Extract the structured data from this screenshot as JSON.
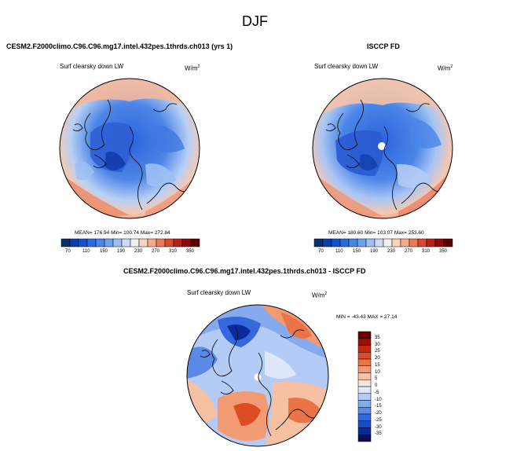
{
  "page": {
    "season": "DJF"
  },
  "panels": {
    "model": {
      "title": "CESM2.F2000climo.C96.C96.mg17.intel.432pes.1thrds.ch013 (yrs 1)",
      "variable": "Surf clearsky down LW",
      "units_base": "W/m",
      "units_exp": "2",
      "stats": "MEAN= 176.94  Min= 100.74  Max= 272.84"
    },
    "obs": {
      "title": "ISCCP FD",
      "variable": "Surf clearsky down LW",
      "units_base": "W/m",
      "units_exp": "2",
      "stats": "MEAN= 180.60  Min= 103.07  Max= 253.60"
    },
    "diff": {
      "title": "CESM2.F2000climo.C96.C96.mg17.intel.432pes.1thrds.ch013 - ISCCP FD",
      "variable": "Surf clearsky down LW",
      "units_base": "W/m",
      "units_exp": "2",
      "stats": "MIN = -43.43  MAX =  27.14"
    }
  },
  "chart_data": [
    {
      "type": "heatmap",
      "projection": "polar-stereographic-north",
      "title": "CESM2.F2000climo.C96.C96.mg17.intel.432pes.1thrds.ch013 (yrs 1)",
      "variable": "Surf clearsky down LW",
      "mean": 176.94,
      "min": 100.74,
      "max": 272.84,
      "colorbar": {
        "orientation": "horizontal",
        "levels": [
          70,
          90,
          110,
          130,
          150,
          170,
          190,
          210,
          230,
          250,
          270,
          290,
          310,
          330,
          350
        ],
        "tick_labels": [
          "70",
          "110",
          "150",
          "190",
          "230",
          "270",
          "310",
          "350"
        ],
        "colors": [
          "#08306b",
          "#0a3fa8",
          "#1552d0",
          "#2a6be0",
          "#4a86e8",
          "#6fa2ee",
          "#9cc0f4",
          "#c8dcf8",
          "#f0f0f0",
          "#fbd3bd",
          "#f6aa88",
          "#eb7a5a",
          "#d84a33",
          "#b52217",
          "#8c0a0a",
          "#5c0000"
        ]
      }
    },
    {
      "type": "heatmap",
      "projection": "polar-stereographic-north",
      "title": "ISCCP FD",
      "variable": "Surf clearsky down LW",
      "mean": 180.6,
      "min": 103.07,
      "max": 253.6,
      "colorbar": {
        "orientation": "horizontal",
        "levels": [
          70,
          90,
          110,
          130,
          150,
          170,
          190,
          210,
          230,
          250,
          270,
          290,
          310,
          330,
          350
        ],
        "tick_labels": [
          "70",
          "110",
          "150",
          "190",
          "230",
          "270",
          "310",
          "350"
        ],
        "colors": [
          "#08306b",
          "#0a3fa8",
          "#1552d0",
          "#2a6be0",
          "#4a86e8",
          "#6fa2ee",
          "#9cc0f4",
          "#c8dcf8",
          "#f0f0f0",
          "#fbd3bd",
          "#f6aa88",
          "#eb7a5a",
          "#d84a33",
          "#b52217",
          "#8c0a0a",
          "#5c0000"
        ]
      }
    },
    {
      "type": "heatmap",
      "projection": "polar-stereographic-north",
      "title": "CESM2.F2000climo.C96.C96.mg17.intel.432pes.1thrds.ch013 - ISCCP FD",
      "variable": "Surf clearsky down LW",
      "min": -43.43,
      "max": 27.14,
      "colorbar": {
        "orientation": "vertical",
        "levels": [
          -35,
          -30,
          -25,
          -20,
          -15,
          -10,
          -5,
          0,
          5,
          10,
          15,
          20,
          25,
          30,
          35
        ],
        "tick_labels": [
          "35",
          "30",
          "25",
          "20",
          "15",
          "10",
          "5",
          "0",
          "-5",
          "-10",
          "-15",
          "-20",
          "-25",
          "-30",
          "-35"
        ],
        "colors": [
          "#08105e",
          "#0a2c9a",
          "#1a4cc8",
          "#3468dc",
          "#5a8ae6",
          "#86aaee",
          "#b4cbf5",
          "#dde8fa",
          "#fbe3d6",
          "#f7c0a2",
          "#f29a72",
          "#ea7448",
          "#dc4d24",
          "#c22a0e",
          "#9a1104",
          "#6a0000"
        ]
      }
    }
  ]
}
